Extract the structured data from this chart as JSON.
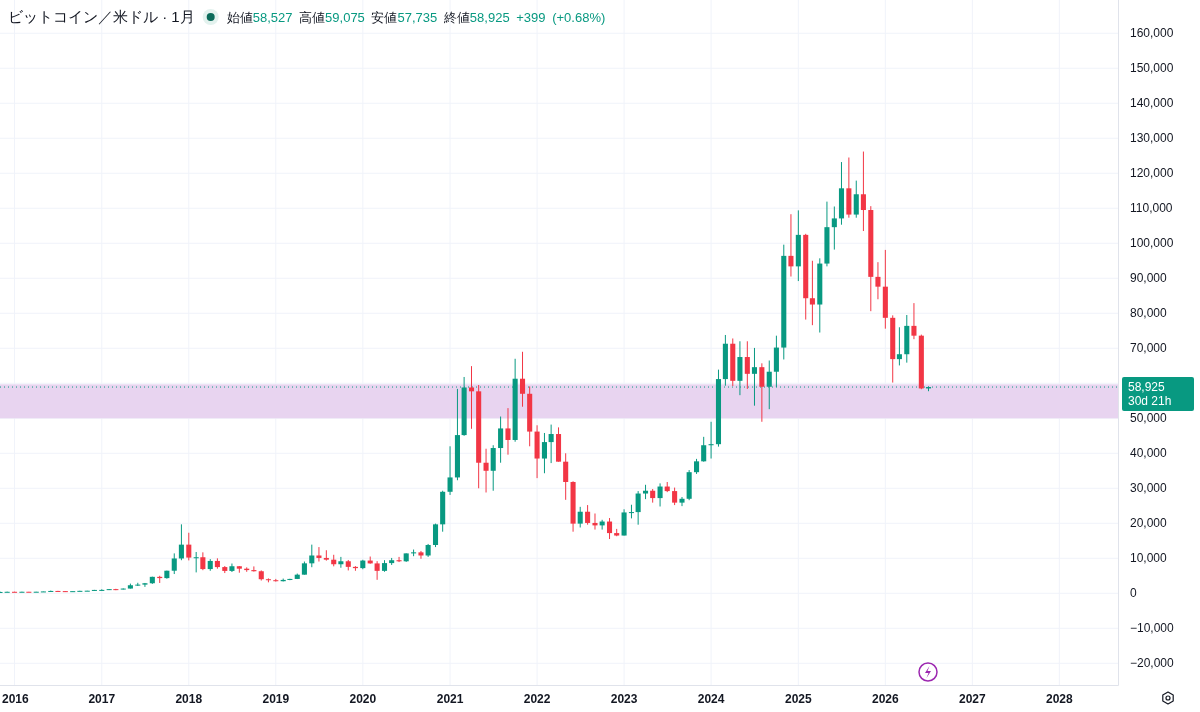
{
  "chart_data": {
    "type": "candlestick",
    "title": "ビットコイン／米ドル · 1月",
    "subtitle": "始値58,527 高値59,075 安値57,735 終値58,925 +399 (+0.68%)",
    "x": [
      "2015-11",
      "2015-12",
      "2016-01",
      "2016-02",
      "2016-03",
      "2016-04",
      "2016-05",
      "2016-06",
      "2016-07",
      "2016-08",
      "2016-09",
      "2016-10",
      "2016-11",
      "2016-12",
      "2017-01",
      "2017-02",
      "2017-03",
      "2017-04",
      "2017-05",
      "2017-06",
      "2017-07",
      "2017-08",
      "2017-09",
      "2017-10",
      "2017-11",
      "2017-12",
      "2018-01",
      "2018-02",
      "2018-03",
      "2018-04",
      "2018-05",
      "2018-06",
      "2018-07",
      "2018-08",
      "2018-09",
      "2018-10",
      "2018-11",
      "2018-12",
      "2019-01",
      "2019-02",
      "2019-03",
      "2019-04",
      "2019-05",
      "2019-06",
      "2019-07",
      "2019-08",
      "2019-09",
      "2019-10",
      "2019-11",
      "2019-12",
      "2020-01",
      "2020-02",
      "2020-03",
      "2020-04",
      "2020-05",
      "2020-06",
      "2020-07",
      "2020-08",
      "2020-09",
      "2020-10",
      "2020-11",
      "2020-12",
      "2021-01",
      "2021-02",
      "2021-03",
      "2021-04",
      "2021-05",
      "2021-06",
      "2021-07",
      "2021-08",
      "2021-09",
      "2021-10",
      "2021-11",
      "2021-12",
      "2022-01",
      "2022-02",
      "2022-03",
      "2022-04",
      "2022-05",
      "2022-06",
      "2022-07",
      "2022-08",
      "2022-09",
      "2022-10",
      "2022-11",
      "2022-12",
      "2023-01",
      "2023-02",
      "2023-03",
      "2023-04",
      "2023-05",
      "2023-06",
      "2023-07",
      "2023-08",
      "2023-09",
      "2023-10",
      "2023-11",
      "2023-12",
      "2024-01",
      "2024-02",
      "2024-03",
      "2024-04",
      "2024-05",
      "2024-06",
      "2024-07",
      "2024-08",
      "2024-09",
      "2024-10",
      "2024-11",
      "2024-12",
      "2025-01",
      "2025-02",
      "2025-03",
      "2025-04",
      "2025-05",
      "2025-06",
      "2025-07",
      "2025-08",
      "2025-09",
      "2025-10",
      "2025-11",
      "2025-12",
      "2026-01",
      "2026-02",
      "2026-03",
      "2026-04",
      "2026-05",
      "2026-06",
      "2026-07"
    ],
    "ohlc": [
      [
        310,
        500,
        300,
        380
      ],
      [
        380,
        470,
        350,
        430
      ],
      [
        430,
        460,
        350,
        370
      ],
      [
        370,
        450,
        360,
        440
      ],
      [
        440,
        440,
        400,
        420
      ],
      [
        420,
        470,
        410,
        450
      ],
      [
        450,
        550,
        440,
        530
      ],
      [
        530,
        780,
        510,
        670
      ],
      [
        670,
        700,
        610,
        620
      ],
      [
        620,
        630,
        470,
        580
      ],
      [
        580,
        630,
        570,
        610
      ],
      [
        610,
        720,
        610,
        700
      ],
      [
        700,
        760,
        690,
        740
      ],
      [
        740,
        980,
        740,
        960
      ],
      [
        960,
        1150,
        750,
        970
      ],
      [
        970,
        1200,
        930,
        1190
      ],
      [
        1190,
        1280,
        890,
        1080
      ],
      [
        1080,
        1400,
        1080,
        1350
      ],
      [
        1350,
        2760,
        1350,
        2300
      ],
      [
        2300,
        3000,
        2100,
        2480
      ],
      [
        2480,
        2950,
        1830,
        2870
      ],
      [
        2870,
        4750,
        2680,
        4700
      ],
      [
        4700,
        5000,
        2950,
        4340
      ],
      [
        4340,
        6470,
        4160,
        6450
      ],
      [
        6450,
        11400,
        5500,
        9950
      ],
      [
        9950,
        19700,
        9450,
        13900
      ],
      [
        13900,
        17300,
        9400,
        10200
      ],
      [
        10200,
        11800,
        5970,
        10300
      ],
      [
        10300,
        11700,
        6600,
        6920
      ],
      [
        6920,
        9770,
        6430,
        9240
      ],
      [
        9240,
        9990,
        7030,
        7490
      ],
      [
        7490,
        7780,
        5780,
        6390
      ],
      [
        6390,
        8500,
        6080,
        7730
      ],
      [
        7730,
        7760,
        5880,
        7030
      ],
      [
        7030,
        7410,
        6140,
        6630
      ],
      [
        6630,
        7680,
        6200,
        6300
      ],
      [
        6300,
        6540,
        3650,
        4020
      ],
      [
        4020,
        4250,
        3130,
        3740
      ],
      [
        3740,
        4110,
        3350,
        3450
      ],
      [
        3450,
        4200,
        3380,
        3820
      ],
      [
        3820,
        4150,
        3740,
        4100
      ],
      [
        4100,
        5630,
        4070,
        5320
      ],
      [
        5320,
        9070,
        5320,
        8560
      ],
      [
        8560,
        13900,
        7450,
        10800
      ],
      [
        10800,
        13200,
        9070,
        10100
      ],
      [
        10100,
        12300,
        9330,
        9600
      ],
      [
        9600,
        11000,
        7700,
        8300
      ],
      [
        8300,
        10400,
        7300,
        9150
      ],
      [
        9150,
        9520,
        6530,
        7550
      ],
      [
        7550,
        7750,
        6430,
        7190
      ],
      [
        7190,
        9570,
        6870,
        9350
      ],
      [
        9350,
        10500,
        8450,
        8540
      ],
      [
        8540,
        9180,
        3850,
        6410
      ],
      [
        6410,
        9460,
        6150,
        8630
      ],
      [
        8630,
        10100,
        8100,
        9450
      ],
      [
        9450,
        10400,
        8920,
        9140
      ],
      [
        9140,
        11400,
        8970,
        11400
      ],
      [
        11400,
        12500,
        10600,
        11700
      ],
      [
        11700,
        12100,
        9860,
        10800
      ],
      [
        10800,
        14100,
        10400,
        13800
      ],
      [
        13800,
        19900,
        13200,
        19700
      ],
      [
        19700,
        29300,
        17600,
        29000
      ],
      [
        29000,
        42000,
        28100,
        33100
      ],
      [
        33100,
        58400,
        32300,
        45200
      ],
      [
        45200,
        61800,
        45000,
        58800
      ],
      [
        58800,
        64900,
        47000,
        57700
      ],
      [
        57700,
        59500,
        30000,
        37300
      ],
      [
        37300,
        41300,
        28800,
        35000
      ],
      [
        35000,
        42300,
        29300,
        41500
      ],
      [
        41500,
        50500,
        37300,
        47100
      ],
      [
        47100,
        52900,
        39600,
        43800
      ],
      [
        43800,
        67000,
        43300,
        61300
      ],
      [
        61300,
        69000,
        53300,
        57000
      ],
      [
        57000,
        59100,
        42000,
        46200
      ],
      [
        46200,
        48000,
        32900,
        38500
      ],
      [
        38500,
        45800,
        34300,
        43200
      ],
      [
        43200,
        48200,
        37200,
        45500
      ],
      [
        45500,
        47400,
        37600,
        37600
      ],
      [
        37600,
        40000,
        26700,
        31800
      ],
      [
        31800,
        32000,
        17600,
        19900
      ],
      [
        19900,
        24700,
        18800,
        23300
      ],
      [
        23300,
        25200,
        19600,
        20100
      ],
      [
        20100,
        22800,
        18200,
        19400
      ],
      [
        19400,
        21000,
        18200,
        20500
      ],
      [
        20500,
        21500,
        15500,
        17200
      ],
      [
        17200,
        18400,
        16300,
        16500
      ],
      [
        16500,
        24000,
        16500,
        23100
      ],
      [
        23100,
        25300,
        21400,
        23200
      ],
      [
        23200,
        29200,
        19600,
        28500
      ],
      [
        28500,
        31000,
        26900,
        29300
      ],
      [
        29300,
        29800,
        25900,
        27200
      ],
      [
        27200,
        31400,
        24800,
        30500
      ],
      [
        30500,
        31800,
        28900,
        29200
      ],
      [
        29200,
        30200,
        25200,
        25900
      ],
      [
        25900,
        27500,
        24900,
        27000
      ],
      [
        27000,
        35200,
        26600,
        34600
      ],
      [
        34600,
        38400,
        34100,
        37700
      ],
      [
        37700,
        44700,
        37600,
        42300
      ],
      [
        42300,
        49000,
        38500,
        42600
      ],
      [
        42600,
        63900,
        41900,
        61200
      ],
      [
        61200,
        73800,
        59300,
        71300
      ],
      [
        71300,
        72800,
        59200,
        60700
      ],
      [
        60700,
        72000,
        56600,
        67500
      ],
      [
        67500,
        72000,
        58400,
        62700
      ],
      [
        62700,
        70100,
        53600,
        64600
      ],
      [
        64600,
        65700,
        49000,
        59000
      ],
      [
        59000,
        66500,
        52600,
        63300
      ],
      [
        63300,
        73600,
        58900,
        70200
      ],
      [
        70200,
        99600,
        66800,
        96400
      ],
      [
        96400,
        108300,
        90500,
        93400
      ],
      [
        93400,
        109400,
        89200,
        102400
      ],
      [
        102400,
        102700,
        78200,
        84300
      ],
      [
        84300,
        95000,
        76600,
        82500
      ],
      [
        82500,
        95700,
        74500,
        94200
      ],
      [
        94200,
        111900,
        93400,
        104600
      ],
      [
        104600,
        110500,
        98200,
        107100
      ],
      [
        107100,
        123200,
        105300,
        115700
      ],
      [
        115700,
        124500,
        107300,
        108200
      ],
      [
        108200,
        117900,
        107300,
        114000
      ],
      [
        114000,
        126200,
        103500,
        109500
      ],
      [
        109500,
        110600,
        80600,
        90400
      ],
      [
        90400,
        94600,
        84000,
        87600
      ],
      [
        87600,
        98100,
        75600,
        78700
      ],
      [
        78700,
        79400,
        60200,
        66900
      ],
      [
        66900,
        76000,
        65100,
        68300
      ],
      [
        68300,
        79500,
        65900,
        76400
      ],
      [
        76400,
        82900,
        72600,
        73600
      ],
      [
        73600,
        73900,
        58300,
        58527
      ],
      [
        58527,
        59075,
        57735,
        58925
      ]
    ],
    "colors": [
      "#089981",
      "#089981",
      "#f23645",
      "#089981",
      "#f23645",
      "#089981",
      "#089981",
      "#089981",
      "#f23645",
      "#f23645",
      "#089981",
      "#089981",
      "#089981",
      "#089981",
      "#089981",
      "#089981",
      "#f23645",
      "#089981",
      "#089981",
      "#089981",
      "#089981",
      "#089981",
      "#f23645",
      "#089981",
      "#089981",
      "#089981",
      "#f23645",
      "#089981",
      "#f23645",
      "#089981",
      "#f23645",
      "#f23645",
      "#089981",
      "#f23645",
      "#f23645",
      "#f23645",
      "#f23645",
      "#f23645",
      "#f23645",
      "#089981",
      "#089981",
      "#089981",
      "#089981",
      "#089981",
      "#f23645",
      "#f23645",
      "#f23645",
      "#089981",
      "#f23645",
      "#f23645",
      "#089981",
      "#f23645",
      "#f23645",
      "#089981",
      "#089981",
      "#f23645",
      "#089981",
      "#089981",
      "#f23645",
      "#089981",
      "#089981",
      "#089981",
      "#089981",
      "#089981",
      "#089981",
      "#f23645",
      "#f23645",
      "#f23645",
      "#089981",
      "#089981",
      "#f23645",
      "#089981",
      "#f23645",
      "#f23645",
      "#f23645",
      "#089981",
      "#089981",
      "#f23645",
      "#f23645",
      "#f23645",
      "#089981",
      "#f23645",
      "#f23645",
      "#089981",
      "#f23645",
      "#f23645",
      "#089981",
      "#089981",
      "#089981",
      "#089981",
      "#f23645",
      "#089981",
      "#f23645",
      "#f23645",
      "#089981",
      "#089981",
      "#089981",
      "#089981",
      "#089981",
      "#089981",
      "#089981",
      "#f23645",
      "#089981",
      "#f23645",
      "#089981",
      "#f23645",
      "#089981",
      "#089981",
      "#089981",
      "#f23645",
      "#089981",
      "#f23645",
      "#f23645",
      "#089981",
      "#089981",
      "#089981",
      "#089981",
      "#f23645",
      "#089981",
      "#f23645",
      "#f23645",
      "#f23645",
      "#f23645",
      "#f23645",
      "#089981",
      "#089981",
      "#f23645",
      "#f23645",
      "#089981"
    ],
    "xlim": [
      "2015-11-01",
      "2028-09-03"
    ],
    "xticks": [
      "2016",
      "2017",
      "2018",
      "2019",
      "2020",
      "2021",
      "2022",
      "2023",
      "2024",
      "2025",
      "2026",
      "2027",
      "2028"
    ],
    "ylim": [
      -26200,
      169500
    ],
    "yticks": [
      {
        "value": -20000,
        "label": "−20,000"
      },
      {
        "value": -10000,
        "label": "−10,000"
      },
      0,
      {
        "value": 10000,
        "label": "10,000"
      },
      {
        "value": 20000,
        "label": "20,000"
      },
      {
        "value": 30000,
        "label": "30,000"
      },
      {
        "value": 40000,
        "label": "40,000"
      },
      {
        "value": 50000,
        "label": "50,000"
      },
      {
        "value": 60000,
        "label": null
      },
      {
        "value": 70000,
        "label": "70,000"
      },
      {
        "value": 80000,
        "label": "80,000"
      },
      {
        "value": 90000,
        "label": "90,000"
      },
      {
        "value": 100000,
        "label": "100,000"
      },
      {
        "value": 110000,
        "label": "110,000"
      },
      {
        "value": 120000,
        "label": "120,000"
      },
      {
        "value": 130000,
        "label": "130,000"
      },
      {
        "value": 140000,
        "label": "140,000"
      },
      {
        "value": 150000,
        "label": "150,000"
      },
      {
        "value": 160000,
        "label": "160,000"
      }
    ],
    "grid": true,
    "bands": [
      {
        "axis": "y",
        "from": 50000,
        "to": 59700,
        "color": "#e8d4f0"
      }
    ],
    "ref_lines": [
      {
        "axis": "y",
        "value": 58925,
        "label": "58,925",
        "color": "#089981",
        "line_style": "dotted"
      }
    ],
    "annotations": [
      "30d 21h"
    ]
  }
}
